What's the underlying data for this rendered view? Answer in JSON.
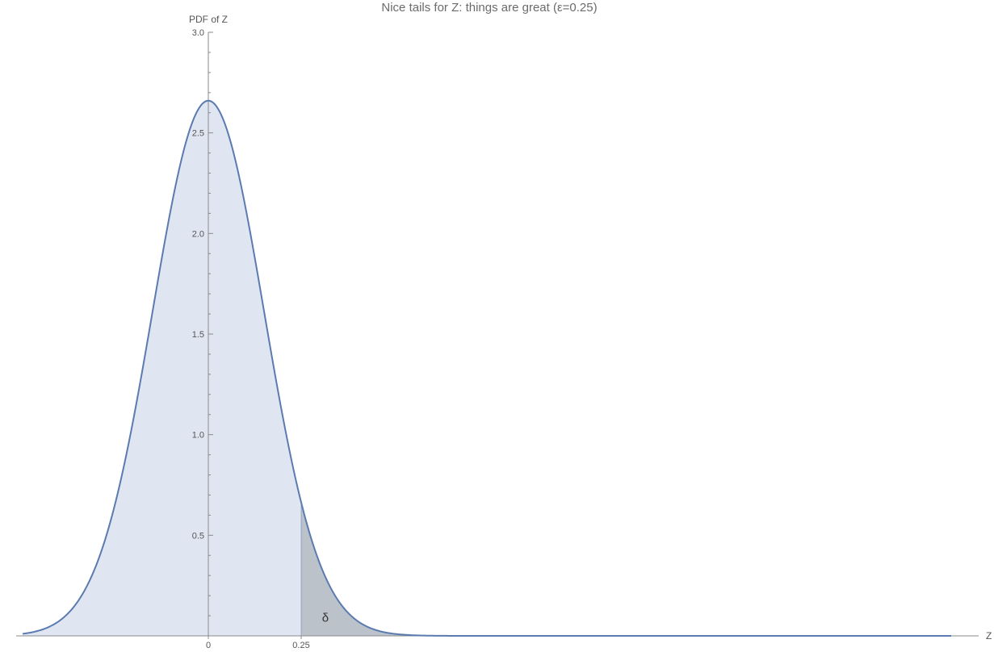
{
  "chart_data": {
    "type": "area",
    "title": "Nice tails for Z: things are great (ε=0.25)",
    "xlabel": "Z",
    "ylabel": "PDF of Z",
    "xlim": [
      -0.5,
      2.0
    ],
    "ylim": [
      0,
      3.0
    ],
    "x_ticks": [
      {
        "value": 0,
        "label": "0"
      },
      {
        "value": 0.25,
        "label": "0.25"
      }
    ],
    "y_ticks": [
      {
        "value": 0.5,
        "label": "0.5"
      },
      {
        "value": 1.0,
        "label": "1.0"
      },
      {
        "value": 1.5,
        "label": "1.5"
      },
      {
        "value": 2.0,
        "label": "2.0"
      },
      {
        "value": 2.5,
        "label": "2.5"
      },
      {
        "value": 3.0,
        "label": "3.0"
      }
    ],
    "y_minor_step": 0.1,
    "series": [
      {
        "distribution": "normal",
        "mean": 0,
        "sd": 0.15,
        "peak": 2.66,
        "x_range": [
          -0.5,
          2.0
        ]
      }
    ],
    "shaded_tail": {
      "from": 0.25,
      "label": "δ"
    },
    "colors": {
      "curve": "#5b7bb0",
      "fill": "#e0e6f1",
      "tail_fill": "#bcc2ca",
      "axis": "#8a8a8a"
    },
    "grid": false
  }
}
